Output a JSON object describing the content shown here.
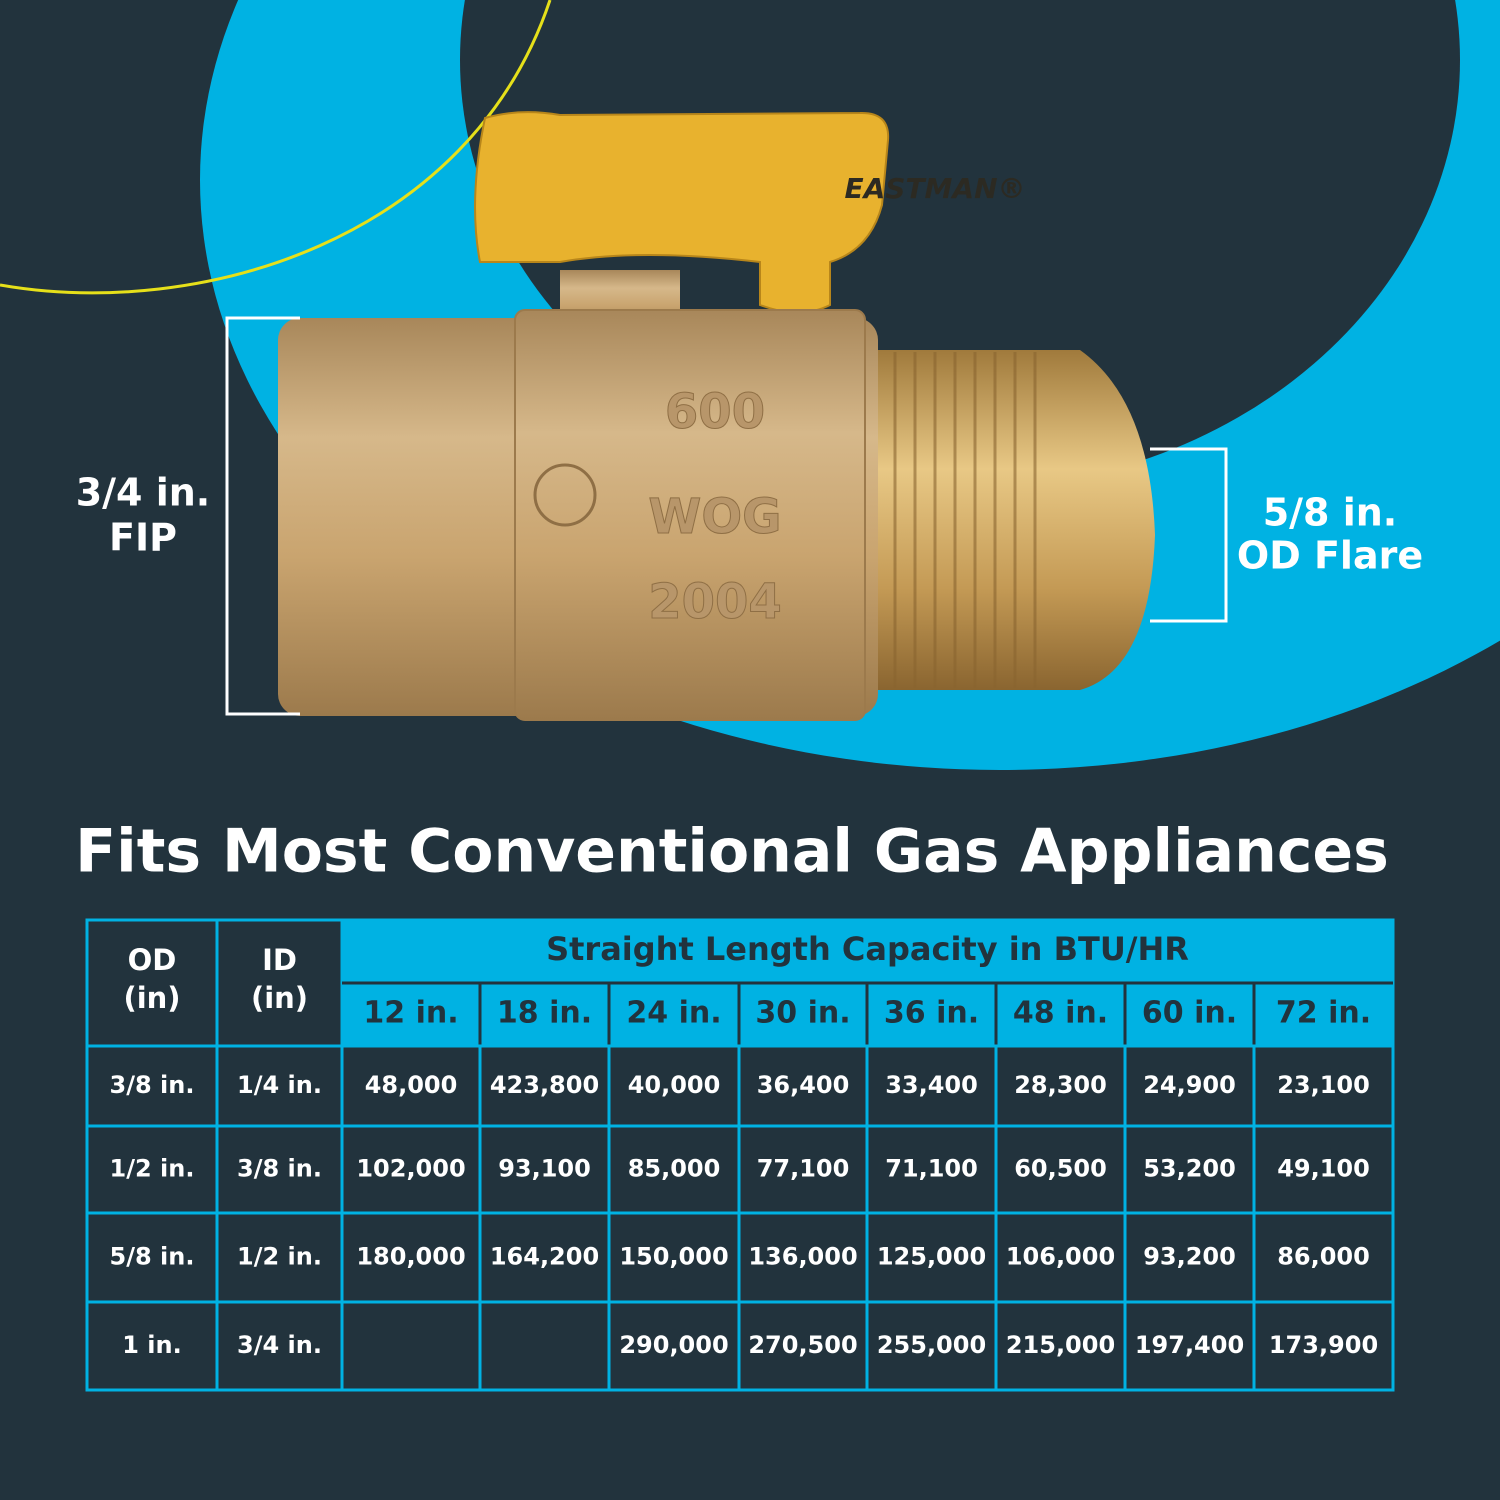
{
  "product": {
    "brand": "EASTMAN®",
    "markings": [
      "600",
      "WOG",
      "2004"
    ]
  },
  "annotations": {
    "left": {
      "size": "3/4 in.",
      "type": "FIP"
    },
    "right": {
      "size": "5/8 in.",
      "type": "OD Flare"
    }
  },
  "title": "Fits Most Conventional Gas Appliances",
  "table": {
    "headers": [
      {
        "label": "OD",
        "unit": "(in)"
      },
      {
        "label": "ID",
        "unit": "(in)"
      }
    ],
    "group_header": "Straight Length Capacity in BTU/HR",
    "lengths": [
      "12 in.",
      "18 in.",
      "24 in.",
      "30 in.",
      "36 in.",
      "48 in.",
      "60 in.",
      "72 in."
    ],
    "rows": [
      [
        "3/8 in.",
        "1/4 in.",
        "48,000",
        "423,800",
        "40,000",
        "36,400",
        "33,400",
        "28,300",
        "24,900",
        "23,100"
      ],
      [
        "1/2 in.",
        "3/8 in.",
        "102,000",
        "93,100",
        "85,000",
        "77,100",
        "71,100",
        "60,500",
        "53,200",
        "49,100"
      ],
      [
        "5/8 in.",
        "1/2 in.",
        "180,000",
        "164,200",
        "150,000",
        "136,000",
        "125,000",
        "106,000",
        "93,200",
        "86,000"
      ],
      [
        "1 in.",
        "3/4 in.",
        null,
        null,
        "290,000",
        "270,500",
        "255,000",
        "215,000",
        "197,400",
        "173,900"
      ]
    ]
  }
}
